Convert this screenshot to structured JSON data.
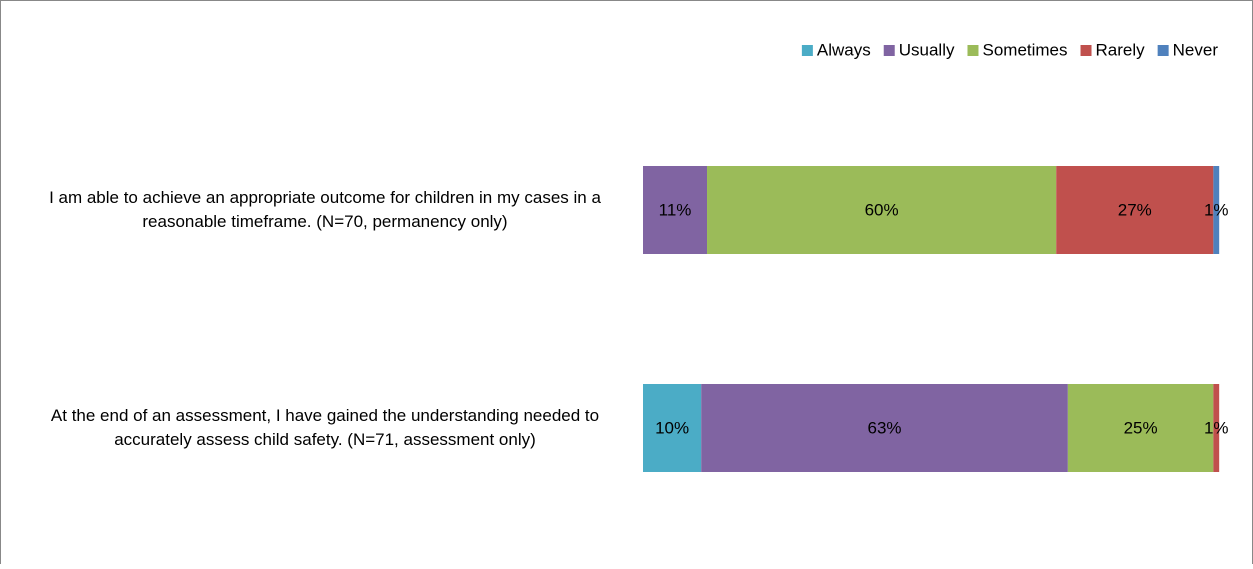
{
  "chart_data": {
    "type": "stacked_bar_horizontal",
    "categories": [
      "I am able to achieve an appropriate outcome for children in my cases in a reasonable timeframe. (N=70, permanency only)",
      "At the end of an assessment, I have gained the understanding needed to accurately assess child safety. (N=71, assessment only)"
    ],
    "series": [
      {
        "name": "Always",
        "color": "#4bacc6",
        "values": [
          0,
          10
        ],
        "value_labels": [
          null,
          "10%"
        ]
      },
      {
        "name": "Usually",
        "color": "#8064a2",
        "values": [
          11,
          63
        ],
        "value_labels": [
          "11%",
          "63%"
        ]
      },
      {
        "name": "Sometimes",
        "color": "#9bbb59",
        "values": [
          60,
          25
        ],
        "value_labels": [
          "60%",
          "25%"
        ]
      },
      {
        "name": "Rarely",
        "color": "#c0504d",
        "values": [
          27,
          1
        ],
        "value_labels": [
          "27%",
          "1%"
        ]
      },
      {
        "name": "Never",
        "color": "#4f81bd",
        "values": [
          1,
          0
        ],
        "value_labels": [
          "1%",
          null
        ]
      }
    ],
    "xlim": [
      0,
      100
    ],
    "legend": "top-right"
  }
}
